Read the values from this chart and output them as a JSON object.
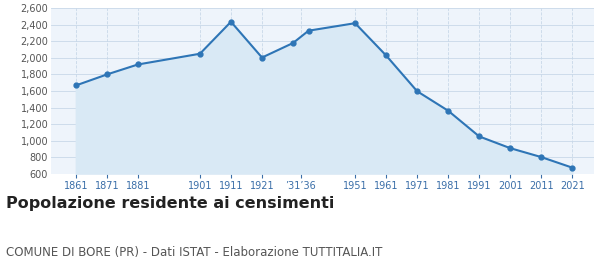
{
  "years": [
    1861,
    1871,
    1881,
    1901,
    1911,
    1921,
    1931,
    1936,
    1951,
    1961,
    1971,
    1981,
    1991,
    2001,
    2011,
    2021
  ],
  "population": [
    1667,
    1800,
    1921,
    2051,
    2438,
    2005,
    2181,
    2330,
    2421,
    2030,
    1597,
    1361,
    1050,
    908,
    800,
    672
  ],
  "x_tick_labels": [
    "1861",
    "1871",
    "1881",
    "1901",
    "1911",
    "1921",
    "’31’36",
    "1951",
    "1961",
    "1971",
    "1981",
    "1991",
    "2001",
    "2011",
    "2021"
  ],
  "x_tick_positions": [
    1861,
    1871,
    1881,
    1901,
    1911,
    1921,
    1933.5,
    1951,
    1961,
    1971,
    1981,
    1991,
    2001,
    2011,
    2021
  ],
  "ylim": [
    600,
    2600
  ],
  "yticks": [
    600,
    800,
    1000,
    1200,
    1400,
    1600,
    1800,
    2000,
    2200,
    2400,
    2600
  ],
  "line_color": "#2e75b6",
  "fill_color": "#d9e9f5",
  "marker_color": "#2e75b6",
  "grid_color": "#c8d8e8",
  "bg_color": "#eef4fb",
  "tick_color": "#3a6ea8",
  "title": "Popolazione residente ai censimenti",
  "subtitle": "COMUNE DI BORE (PR) - Dati ISTAT - Elaborazione TUTTITALIA.IT",
  "title_fontsize": 11.5,
  "subtitle_fontsize": 8.5,
  "xlim_left": 1853,
  "xlim_right": 2028
}
